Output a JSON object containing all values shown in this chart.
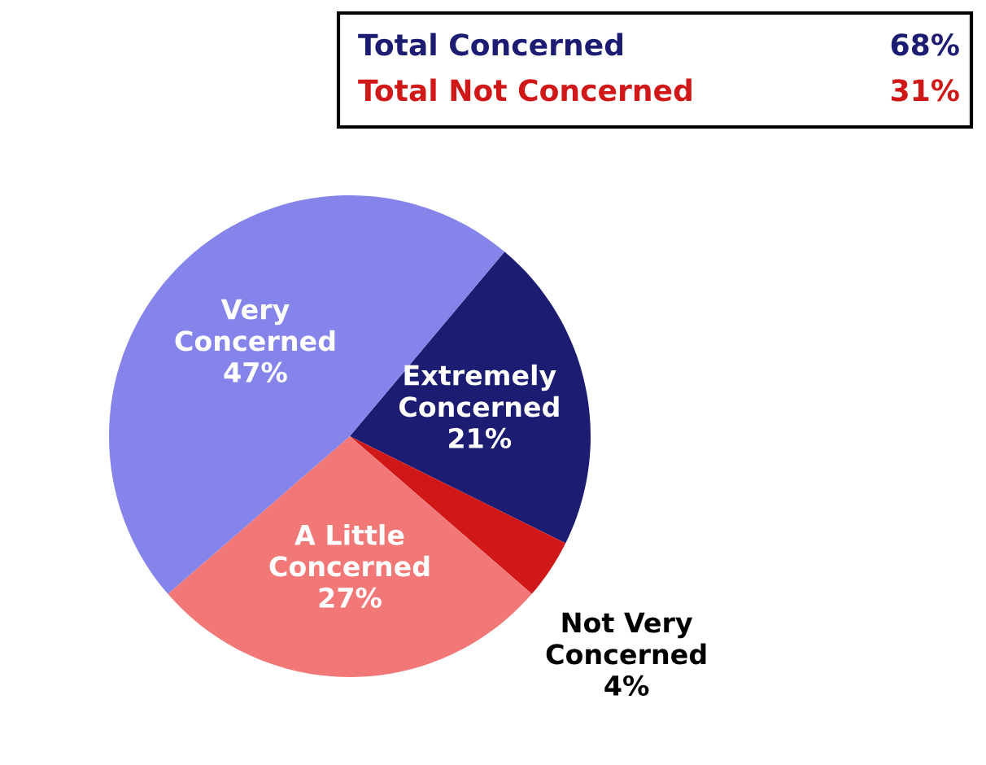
{
  "chart_data": {
    "type": "pie",
    "categories": [
      "Extremely Concerned",
      "Not Very Concerned",
      "A Little Concerned",
      "Very Concerned"
    ],
    "values": [
      21,
      4,
      27,
      47
    ],
    "colors": [
      "#1c1c72",
      "#d01818",
      "#f27878",
      "#8484ea"
    ],
    "value_labels": [
      "21%",
      "4%",
      "27%",
      "47%"
    ],
    "annotations": [
      "Total Concerned",
      "68%",
      "Total Not Concerned",
      "31%"
    ],
    "legend": false
  }
}
